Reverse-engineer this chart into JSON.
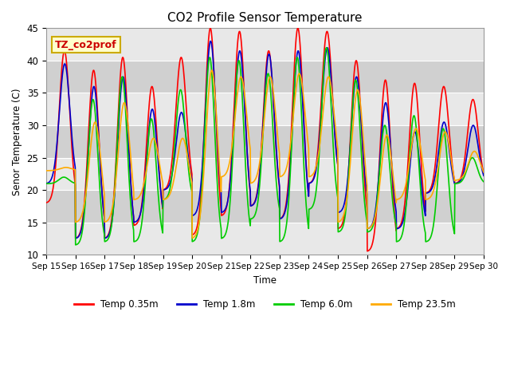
{
  "title": "CO2 Profile Sensor Temperature",
  "ylabel": "Senor Temperature (C)",
  "xlabel": "Time",
  "annotation_text": "TZ_co2prof",
  "annotation_bg": "#ffffcc",
  "annotation_border": "#ccaa00",
  "ylim": [
    10,
    45
  ],
  "series_colors": [
    "#ff0000",
    "#0000cc",
    "#00cc00",
    "#ffaa00"
  ],
  "series_labels": [
    "Temp 0.35m",
    "Temp 1.8m",
    "Temp 6.0m",
    "Temp 23.5m"
  ],
  "x_tick_labels": [
    "Sep 15",
    "Sep 16",
    "Sep 17",
    "Sep 18",
    "Sep 19",
    "Sep 20",
    "Sep 21",
    "Sep 22",
    "Sep 23",
    "Sep 24",
    "Sep 25",
    "Sep 26",
    "Sep 27",
    "Sep 28",
    "Sep 29",
    "Sep 30"
  ],
  "fig_bg": "#ffffff",
  "plot_bg": "#d8d8d8",
  "grid_color": "#ffffff",
  "linewidth": 1.2,
  "figsize": [
    6.4,
    4.8
  ],
  "dpi": 100
}
